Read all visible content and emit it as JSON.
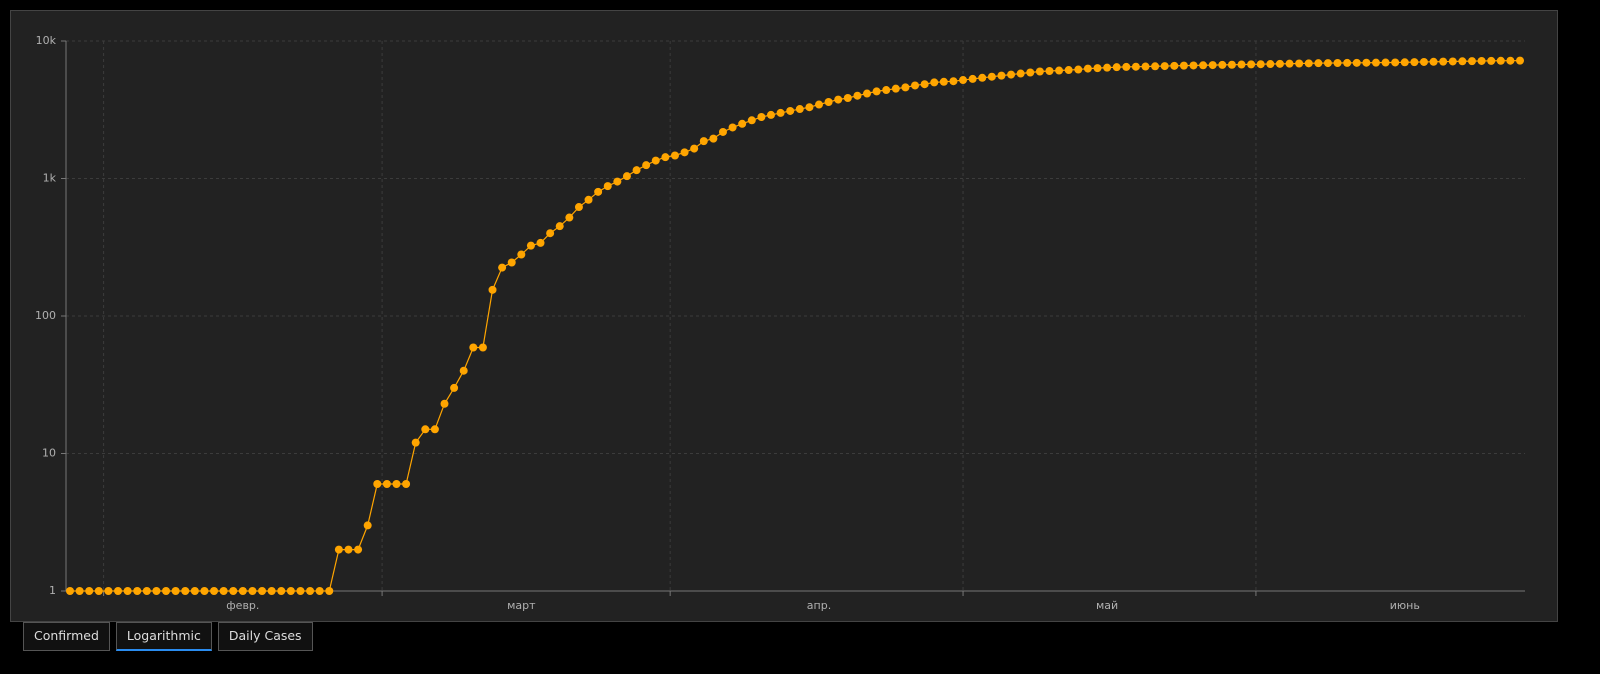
{
  "chart_data": {
    "type": "line",
    "log_y": true,
    "grid": true,
    "color": "#ffa500",
    "categories": [
      null,
      null,
      null,
      null,
      null,
      null,
      null,
      null,
      null,
      null,
      null,
      null,
      null,
      null,
      null,
      null,
      null,
      null,
      "февр.",
      null,
      null,
      null,
      null,
      null,
      null,
      null,
      null,
      null,
      null,
      null,
      null,
      null,
      null,
      null,
      null,
      null,
      null,
      null,
      null,
      null,
      null,
      null,
      null,
      null,
      null,
      null,
      null,
      "март",
      null,
      null,
      null,
      null,
      null,
      null,
      null,
      null,
      null,
      null,
      null,
      null,
      null,
      null,
      null,
      null,
      null,
      null,
      null,
      null,
      null,
      null,
      null,
      null,
      null,
      null,
      null,
      null,
      null,
      null,
      "апр.",
      null,
      null,
      null,
      null,
      null,
      null,
      null,
      null,
      null,
      null,
      null,
      null,
      null,
      null,
      null,
      null,
      null,
      null,
      null,
      null,
      null,
      null,
      null,
      null,
      null,
      null,
      null,
      null,
      null,
      "май",
      null,
      null,
      null,
      null,
      null,
      null,
      null,
      null,
      null,
      null,
      null,
      null,
      null,
      null,
      null,
      null,
      null,
      null,
      null,
      null,
      null,
      null,
      null,
      null,
      null,
      null,
      null,
      null,
      null,
      null,
      "июнь",
      null,
      null,
      null,
      null,
      null,
      null,
      null,
      null,
      null,
      null,
      null,
      null
    ],
    "values": [
      1,
      1,
      1,
      1,
      1,
      1,
      1,
      1,
      1,
      1,
      1,
      1,
      1,
      1,
      1,
      1,
      1,
      1,
      1,
      1,
      1,
      1,
      1,
      1,
      1,
      1,
      1,
      1,
      2,
      2,
      2,
      3,
      6,
      6,
      6,
      6,
      12,
      15,
      15,
      23,
      30,
      40,
      59,
      59,
      155,
      225,
      245,
      280,
      325,
      340,
      400,
      450,
      520,
      620,
      700,
      800,
      880,
      950,
      1040,
      1150,
      1250,
      1350,
      1430,
      1470,
      1550,
      1650,
      1870,
      1950,
      2180,
      2350,
      2500,
      2650,
      2800,
      2900,
      3000,
      3100,
      3200,
      3300,
      3450,
      3600,
      3750,
      3850,
      4000,
      4150,
      4300,
      4400,
      4500,
      4600,
      4750,
      4850,
      5000,
      5050,
      5100,
      5200,
      5300,
      5400,
      5500,
      5600,
      5700,
      5800,
      5900,
      6000,
      6050,
      6100,
      6150,
      6200,
      6300,
      6350,
      6400,
      6450,
      6480,
      6500,
      6520,
      6550,
      6570,
      6600,
      6620,
      6640,
      6660,
      6680,
      6700,
      6720,
      6740,
      6760,
      6780,
      6800,
      6820,
      6840,
      6860,
      6880,
      6900,
      6910,
      6920,
      6930,
      6940,
      6950,
      6960,
      6970,
      6980,
      7000,
      7020,
      7040,
      7060,
      7080,
      7100,
      7120,
      7140,
      7160,
      7170,
      7180,
      7190,
      7200
    ],
    "ylim": [
      1,
      10000
    ],
    "yticks": [
      1,
      10,
      100,
      {
        "value": 1000,
        "label": "1k"
      },
      {
        "value": 10000,
        "label": "10k"
      }
    ]
  },
  "tabs": [
    "Confirmed",
    "Logarithmic",
    "Daily Cases"
  ],
  "active_tab": 1
}
